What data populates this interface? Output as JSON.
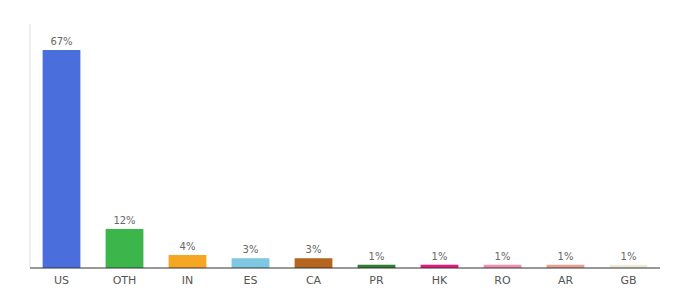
{
  "chart_data": {
    "type": "bar",
    "categories": [
      "US",
      "OTH",
      "IN",
      "ES",
      "CA",
      "PR",
      "HK",
      "RO",
      "AR",
      "GB"
    ],
    "values": [
      67,
      12,
      4,
      3,
      3,
      1,
      1,
      1,
      1,
      1
    ],
    "value_labels": [
      "67%",
      "12%",
      "4%",
      "3%",
      "3%",
      "1%",
      "1%",
      "1%",
      "1%",
      "1%"
    ],
    "data_labels": true,
    "colors": [
      "#4a6fdc",
      "#3cb54a",
      "#f5a623",
      "#7ec8e3",
      "#b5651d",
      "#2e7d32",
      "#e8177d",
      "#f48fb1",
      "#e8a090",
      "#f0ead8"
    ],
    "ylim": [
      0,
      75
    ],
    "tick_labels": "x",
    "grid": false
  }
}
